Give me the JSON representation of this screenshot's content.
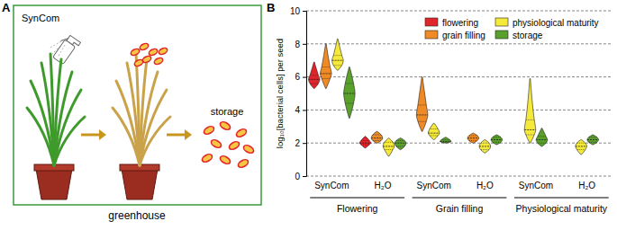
{
  "figure": {
    "panel_labels": [
      "A",
      "B"
    ],
    "diagram": {
      "spray_label": "SynCom",
      "setting_label": "greenhouse",
      "end_label": "storage"
    }
  },
  "chart_data": {
    "type": "violin",
    "y_label": "log₁₀[bacterial cells] per seed",
    "categories": [
      "SynCom",
      "H₂O",
      "SynCom",
      "H₂O",
      "SynCom",
      "H₂O"
    ],
    "groups": [
      "Flowering",
      "Grain filling",
      "Physiological maturity"
    ],
    "ylim": [
      0,
      10
    ],
    "yticks": [
      0,
      2,
      4,
      6,
      8,
      10
    ],
    "grid": true,
    "legend": "top-right",
    "series": [
      {
        "name": "flowering",
        "color": "#e0262a",
        "values": [
          5.85,
          2.0,
          null,
          null,
          null,
          null
        ],
        "min": [
          5.3,
          1.7,
          null,
          null,
          null,
          null
        ],
        "q1": [
          5.6,
          1.9,
          null,
          null,
          null,
          null
        ],
        "q3": [
          6.1,
          2.15,
          null,
          null,
          null,
          null
        ],
        "max": [
          6.9,
          2.4,
          null,
          null,
          null,
          null
        ]
      },
      {
        "name": "grain filling",
        "color": "#f08a24",
        "values": [
          6.2,
          2.3,
          3.7,
          2.3,
          null,
          null
        ],
        "min": [
          5.3,
          2.0,
          2.7,
          2.0,
          null,
          null
        ],
        "q1": [
          5.9,
          2.15,
          3.3,
          2.15,
          null,
          null
        ],
        "q3": [
          6.6,
          2.5,
          4.3,
          2.45,
          null,
          null
        ],
        "max": [
          8.0,
          2.7,
          6.0,
          2.6,
          null,
          null
        ]
      },
      {
        "name": "physiological maturity",
        "color": "#f5ea3a",
        "values": [
          7.0,
          1.8,
          2.6,
          1.8,
          2.8,
          1.8
        ],
        "min": [
          6.4,
          1.2,
          2.2,
          1.4,
          2.0,
          1.3
        ],
        "q1": [
          6.7,
          1.6,
          2.45,
          1.6,
          2.5,
          1.6
        ],
        "q3": [
          7.3,
          2.05,
          2.85,
          2.0,
          3.4,
          2.0
        ],
        "max": [
          8.3,
          2.3,
          3.2,
          2.2,
          5.9,
          2.2
        ]
      },
      {
        "name": "storage",
        "color": "#5aa02c",
        "values": [
          5.0,
          2.0,
          2.1,
          2.2,
          2.2,
          2.2
        ],
        "min": [
          3.5,
          1.6,
          2.0,
          1.9,
          1.8,
          1.9
        ],
        "q1": [
          4.4,
          1.8,
          2.05,
          2.05,
          2.0,
          2.05
        ],
        "q3": [
          5.6,
          2.15,
          2.2,
          2.35,
          2.4,
          2.35
        ],
        "max": [
          6.6,
          2.3,
          2.35,
          2.5,
          2.9,
          2.5
        ]
      }
    ]
  }
}
